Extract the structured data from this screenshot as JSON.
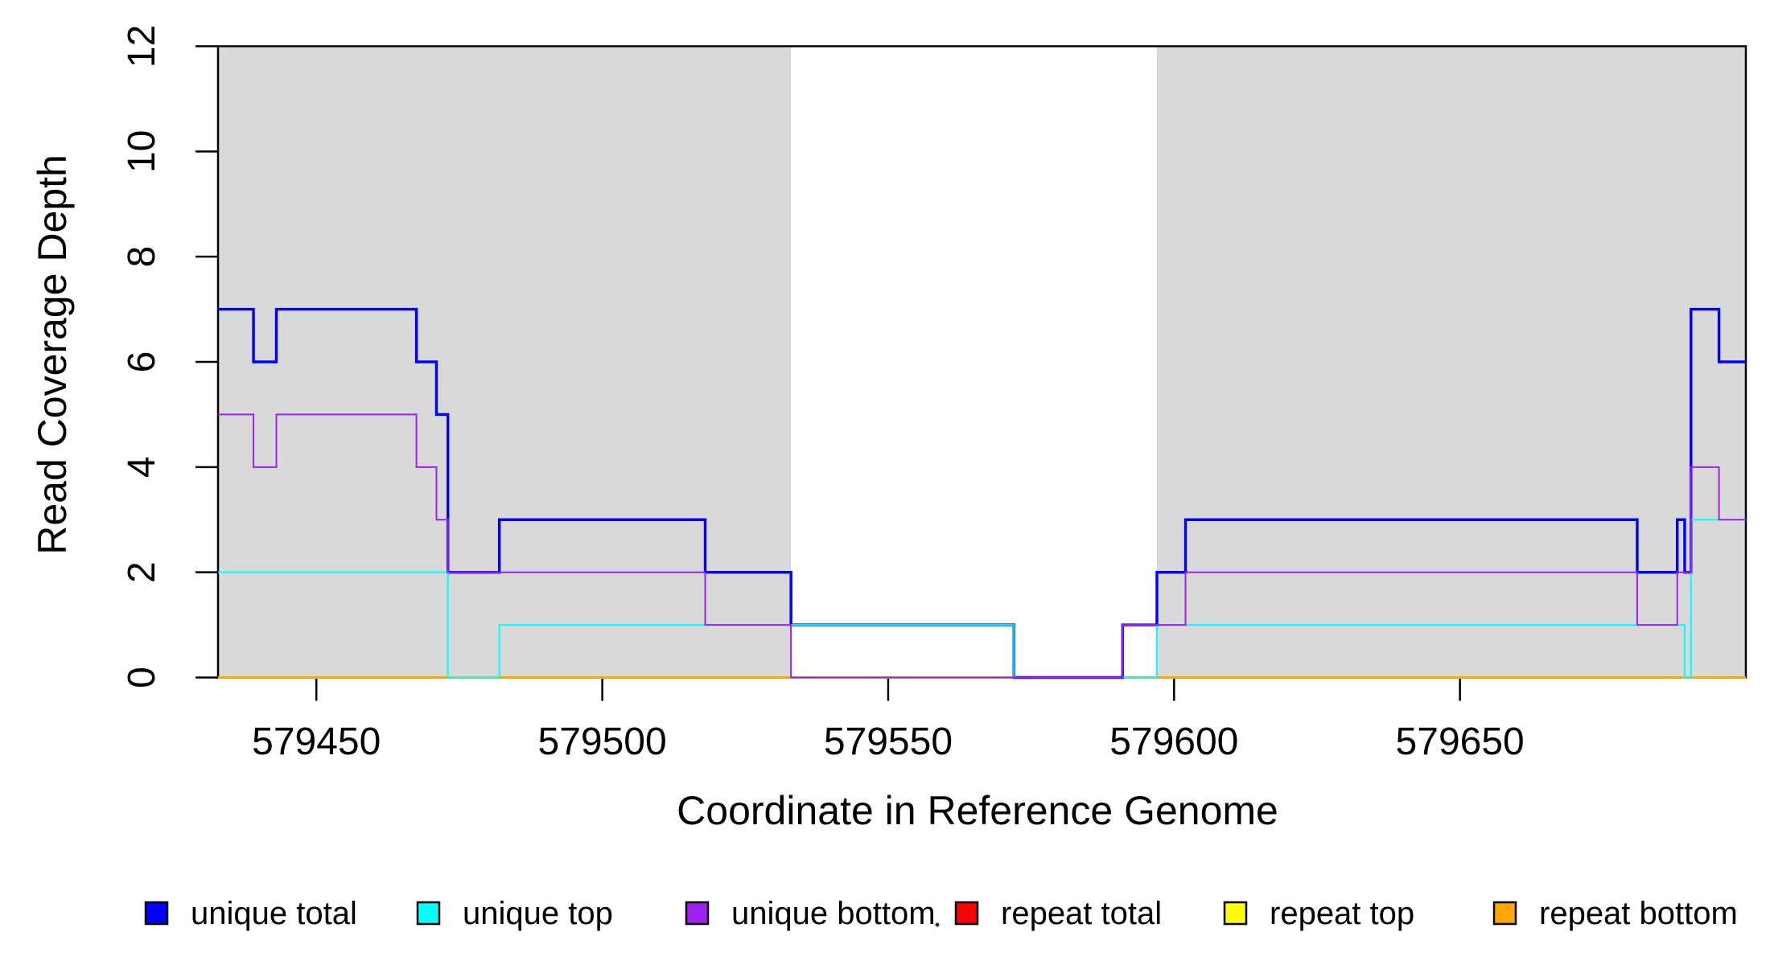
{
  "chart_data": {
    "type": "step-line",
    "title": "",
    "xlabel": "Coordinate in Reference Genome",
    "ylabel": "Read Coverage Depth",
    "xlim": [
      579432.8,
      579700.0
    ],
    "ylim": [
      0,
      12
    ],
    "x_ticks": [
      579450,
      579500,
      579550,
      579600,
      579650
    ],
    "y_ticks": [
      0,
      2,
      4,
      6,
      8,
      10,
      12
    ],
    "grid": false,
    "background_color": "#ffffff",
    "shade_color": "#d9d9d9",
    "shaded_regions": [
      {
        "start": 579432.8,
        "end": 579533
      },
      {
        "start": 579597.0,
        "end": 579700.0
      }
    ],
    "series": [
      {
        "name": "repeat total",
        "color": "#ff0000",
        "line_width": 2,
        "segments": [
          [
            579432.8,
            579700.0,
            0
          ]
        ]
      },
      {
        "name": "repeat top",
        "color": "#ffff00",
        "line_width": 2,
        "segments": [
          [
            579432.8,
            579700.0,
            0
          ]
        ]
      },
      {
        "name": "repeat bottom",
        "color": "#ffa500",
        "line_width": 3,
        "segments": [
          [
            579432.8,
            579700.0,
            0
          ]
        ]
      },
      {
        "name": "unique total",
        "color": "#0000ff",
        "line_width": 3.4,
        "segments": [
          [
            579432.8,
            579439,
            7
          ],
          [
            579439,
            579443,
            6
          ],
          [
            579443,
            579467.5,
            7
          ],
          [
            579467.5,
            579471,
            6
          ],
          [
            579471,
            579473,
            5
          ],
          [
            579473,
            579482,
            2
          ],
          [
            579482,
            579518,
            3
          ],
          [
            579518,
            579533,
            2
          ],
          [
            579533,
            579572,
            1
          ],
          [
            579572,
            579591,
            0
          ],
          [
            579591,
            579597,
            1
          ],
          [
            579597,
            579602,
            2
          ],
          [
            579602,
            579681,
            3
          ],
          [
            579681,
            579688,
            2
          ],
          [
            579688,
            579689.3,
            3
          ],
          [
            579689.3,
            579690.4,
            2
          ],
          [
            579690.4,
            579695.3,
            7
          ],
          [
            579695.3,
            579700.0,
            6
          ]
        ]
      },
      {
        "name": "unique top",
        "color": "#00ffff",
        "line_width": 2,
        "segments": [
          [
            579432.8,
            579473,
            2
          ],
          [
            579473,
            579482,
            0
          ],
          [
            579482,
            579572,
            1
          ],
          [
            579572,
            579597,
            0
          ],
          [
            579597,
            579689.3,
            1
          ],
          [
            579689.3,
            579690.4,
            0
          ],
          [
            579690.4,
            579700.0,
            3
          ]
        ]
      },
      {
        "name": "unique bottom",
        "color": "#a020f0",
        "line_width": 2,
        "segments": [
          [
            579432.8,
            579439,
            5
          ],
          [
            579439,
            579443,
            4
          ],
          [
            579443,
            579467.5,
            5
          ],
          [
            579467.5,
            579471,
            4
          ],
          [
            579471,
            579473,
            3
          ],
          [
            579473,
            579518,
            2
          ],
          [
            579518,
            579533,
            1
          ],
          [
            579533,
            579591,
            0
          ],
          [
            579591,
            579602,
            1
          ],
          [
            579602,
            579681,
            2
          ],
          [
            579681,
            579688,
            1
          ],
          [
            579688,
            579690.4,
            2
          ],
          [
            579690.4,
            579695.3,
            4
          ],
          [
            579695.3,
            579700.0,
            3
          ]
        ]
      }
    ],
    "legend": [
      {
        "label": "unique total",
        "color": "#0000ff"
      },
      {
        "label": "unique top",
        "color": "#00ffff"
      },
      {
        "label": "unique bottom",
        "color": "#a020f0"
      },
      {
        "label": "repeat total",
        "color": "#ff0000"
      },
      {
        "label": "repeat top",
        "color": "#ffff00"
      },
      {
        "label": "repeat bottom",
        "color": "#ffa500"
      }
    ],
    "legend_position": "bottom",
    "artifact_dot": {
      "x": 1165,
      "y": 1150
    }
  }
}
